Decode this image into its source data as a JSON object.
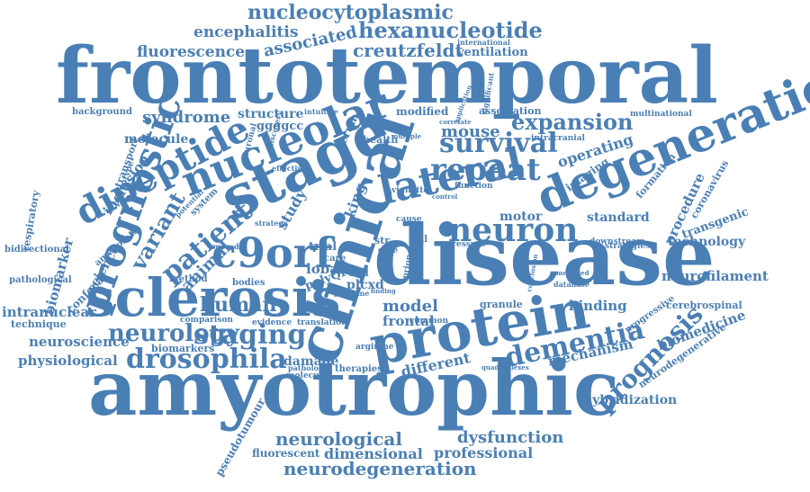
{
  "color": "#4a7fb5",
  "words": [
    "frontotemporal",
    "amyotrophic",
    "disease",
    "clinical",
    "sclerosis",
    "protein",
    "stage",
    "degeneration",
    "nucleolar",
    "c9orf",
    "dipeptide",
    "prognostic",
    "lateral",
    "neuron",
    "repeat",
    "survival",
    "expansion",
    "drosophila",
    "staging",
    "neurology",
    "human",
    "dementia",
    "prognosis",
    "nucleocytoplasmic",
    "hexanucleotide",
    "creutzfeldt",
    "encephalitis",
    "fluorescence",
    "associated",
    "ventilation",
    "international",
    "syndrome",
    "structure",
    "ggggcc",
    "patient",
    "variant",
    "neurological",
    "dysfunction",
    "neurodegeneration",
    "professional",
    "dimensional",
    "fluorescent",
    "hybridization",
    "mechanism",
    "different",
    "model",
    "binding",
    "granule",
    "neurofilament",
    "cerebrospinal",
    "biomedicine",
    "neurodegenerative",
    "progressive",
    "technology",
    "transgenic",
    "coronavirus",
    "procedure",
    "formation",
    "standard",
    "motor",
    "operating",
    "imaging",
    "intracranial",
    "multinational",
    "modified",
    "association",
    "mouse",
    "intranuclear",
    "technique",
    "neuroscience",
    "physiological",
    "biomarkers",
    "comparison",
    "evidence",
    "translation",
    "damage",
    "pathology",
    "molecular",
    "therapies",
    "frontal",
    "common",
    "arginine",
    "biomarker",
    "respiratory",
    "bidirectional",
    "pathological",
    "confocal",
    "science",
    "animal",
    "inclusion",
    "background",
    "molecule",
    "transport",
    "phenotype",
    "ameliorate",
    "method",
    "bodies",
    "lobar",
    "trial",
    "study",
    "king",
    "serum",
    "health",
    "vignette",
    "cause",
    "cell",
    "prion",
    "pressure",
    "database",
    "downstream",
    "strategies",
    "quadruplexes",
    "plcxd",
    "ftld",
    "polyQr",
    "volume",
    "finding",
    "system",
    "potential",
    "sporadic",
    "strategy",
    "effective",
    "neuronal",
    "intuitive",
    "discovery",
    "correlate",
    "application",
    "multiple",
    "function",
    "control",
    "pseudotumour",
    "mediated",
    "conclusion",
    "significant",
    "str",
    "case",
    "care"
  ]
}
